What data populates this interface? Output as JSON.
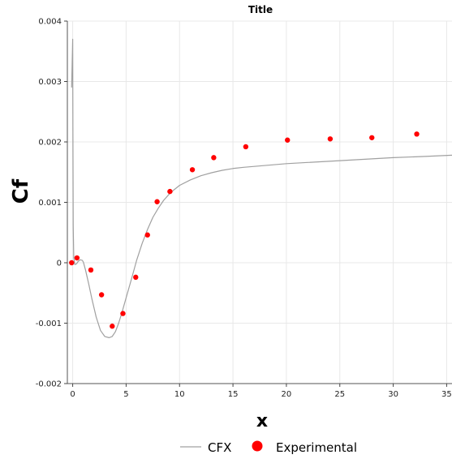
{
  "chart_data": {
    "type": "line",
    "title": "Title",
    "xlabel": "x",
    "ylabel": "Cf",
    "xlim": [
      -0.5,
      35.5
    ],
    "ylim": [
      -0.002,
      0.004
    ],
    "xticks": [
      0,
      5,
      10,
      15,
      20,
      25,
      30,
      35
    ],
    "yticks": [
      -0.002,
      -0.001,
      0,
      0.001,
      0.002,
      0.003,
      0.004
    ],
    "xtick_labels": [
      "0",
      "5",
      "10",
      "15",
      "20",
      "25",
      "30",
      "35"
    ],
    "ytick_labels": [
      "-0.002",
      "-0.001",
      "0",
      "0.001",
      "0.002",
      "0.003",
      "0.004"
    ],
    "grid": true,
    "legend_position": "bottom",
    "series": [
      {
        "name": "CFX",
        "kind": "line",
        "color": "#a0a0a0",
        "x": [
          -0.1,
          0.0,
          0.02,
          0.05,
          0.1,
          0.2,
          0.35,
          0.5,
          0.7,
          0.9,
          1.0,
          1.2,
          1.5,
          1.8,
          2.2,
          2.6,
          3.0,
          3.4,
          3.7,
          4.0,
          4.3,
          4.6,
          5.0,
          5.5,
          6.0,
          6.5,
          7.0,
          7.5,
          8.0,
          8.5,
          9.0,
          9.5,
          10.0,
          11.0,
          12.0,
          13.0,
          14.0,
          15.0,
          16.0,
          18.0,
          20.0,
          22.0,
          25.0,
          28.0,
          30.0,
          33.0,
          35.5
        ],
        "y": [
          0.0029,
          0.0037,
          0.0022,
          0.0006,
          8e-05,
          -3e-05,
          -2e-05,
          2e-05,
          5e-05,
          4e-05,
          1e-05,
          -0.00012,
          -0.00035,
          -0.0006,
          -0.0009,
          -0.00112,
          -0.00122,
          -0.00124,
          -0.00122,
          -0.00114,
          -0.001,
          -0.00083,
          -0.00058,
          -0.00027,
          5e-05,
          0.00032,
          0.00055,
          0.00075,
          0.0009,
          0.00103,
          0.00113,
          0.00121,
          0.00128,
          0.00137,
          0.00144,
          0.00149,
          0.00153,
          0.00156,
          0.00158,
          0.00161,
          0.00164,
          0.00166,
          0.00169,
          0.00172,
          0.00174,
          0.00176,
          0.00178
        ]
      },
      {
        "name": "Experimental",
        "kind": "scatter",
        "color": "#ff0000",
        "x": [
          -0.1,
          0.4,
          1.7,
          2.7,
          3.7,
          4.7,
          5.9,
          7.0,
          7.9,
          9.1,
          11.2,
          13.2,
          16.2,
          20.1,
          24.1,
          28.0,
          32.2
        ],
        "y": [
          0.0,
          8e-05,
          -0.00012,
          -0.00053,
          -0.00105,
          -0.00084,
          -0.00024,
          0.00046,
          0.00101,
          0.00118,
          0.00154,
          0.00174,
          0.00192,
          0.00203,
          0.00205,
          0.00207,
          0.00213
        ]
      }
    ]
  }
}
